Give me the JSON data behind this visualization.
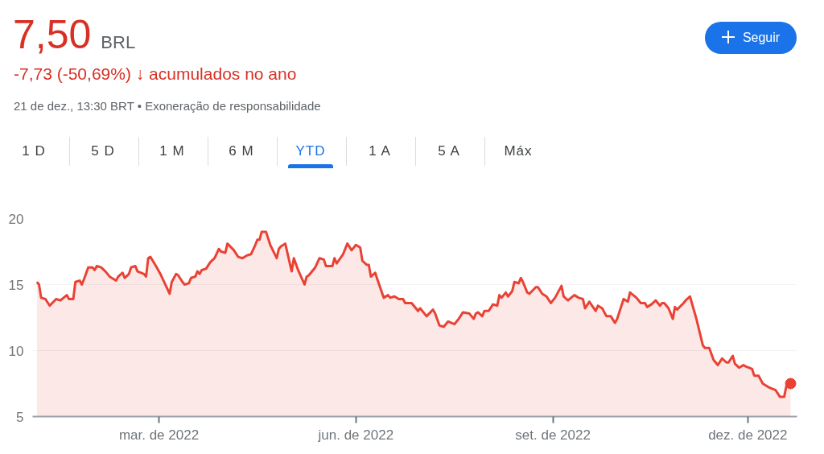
{
  "chart_data": {
    "type": "area",
    "title": "7,50 BRL",
    "subtitle": "-7,73 (-50,69%) ↓ acumulados no ano",
    "annotations": [
      "21 de dez., 13:30 BRT • Exoneração de responsabilidade",
      "Seguir",
      "1 D",
      "5 D",
      "1 M",
      "6 M",
      "YTD",
      "1 A",
      "5 A",
      "Máx"
    ],
    "xlim": [
      "2022-01-01",
      "2022-12-24"
    ],
    "xticks": [
      {
        "value": "2022-03-01",
        "label": "mar. de 2022"
      },
      {
        "value": "2022-06-01",
        "label": "jun. de 2022"
      },
      {
        "value": "2022-09-01",
        "label": "set. de 2022"
      },
      {
        "value": "2022-12-01",
        "label": "dez. de 2022"
      }
    ],
    "ylim": [
      5,
      20
    ],
    "yticks": [
      5,
      10,
      15,
      20
    ],
    "grid": "y",
    "series": [
      {
        "color": "#e94235",
        "line_style": "solid",
        "x": [
          "2022-01-03",
          "2022-01-04",
          "2022-01-05",
          "2022-01-07",
          "2022-01-09",
          "2022-01-12",
          "2022-01-14",
          "2022-01-17",
          "2022-01-18",
          "2022-01-20",
          "2022-01-21",
          "2022-01-23",
          "2022-01-24",
          "2022-01-25",
          "2022-01-27",
          "2022-01-29",
          "2022-01-30",
          "2022-01-31",
          "2022-02-02",
          "2022-02-04",
          "2022-02-06",
          "2022-02-09",
          "2022-02-10",
          "2022-02-12",
          "2022-02-13",
          "2022-02-15",
          "2022-02-16",
          "2022-02-18",
          "2022-02-19",
          "2022-02-22",
          "2022-02-23",
          "2022-02-24",
          "2022-02-25",
          "2022-02-28",
          "2022-03-02",
          "2022-03-06",
          "2022-03-07",
          "2022-03-09",
          "2022-03-10",
          "2022-03-12",
          "2022-03-13",
          "2022-03-15",
          "2022-03-16",
          "2022-03-18",
          "2022-03-19",
          "2022-03-20",
          "2022-03-21",
          "2022-03-23",
          "2022-03-25",
          "2022-03-27",
          "2022-03-29",
          "2022-03-30",
          "2022-04-01",
          "2022-04-02",
          "2022-04-05",
          "2022-04-07",
          "2022-04-09",
          "2022-04-11",
          "2022-04-13",
          "2022-04-15",
          "2022-04-16",
          "2022-04-17",
          "2022-04-18",
          "2022-04-20",
          "2022-04-22",
          "2022-04-25",
          "2022-04-26",
          "2022-04-27",
          "2022-04-29",
          "2022-05-02",
          "2022-05-03",
          "2022-05-05",
          "2022-05-08",
          "2022-05-09",
          "2022-05-10",
          "2022-05-13",
          "2022-05-15",
          "2022-05-17",
          "2022-05-18",
          "2022-05-21",
          "2022-05-22",
          "2022-05-23",
          "2022-05-26",
          "2022-05-28",
          "2022-05-30",
          "2022-06-01",
          "2022-06-03",
          "2022-06-04",
          "2022-06-06",
          "2022-06-07",
          "2022-06-08",
          "2022-06-10",
          "2022-06-11",
          "2022-06-14",
          "2022-06-16",
          "2022-06-17",
          "2022-06-19",
          "2022-06-21",
          "2022-06-23",
          "2022-06-24",
          "2022-06-27",
          "2022-06-28",
          "2022-06-30",
          "2022-07-01",
          "2022-07-04",
          "2022-07-07",
          "2022-07-08",
          "2022-07-10",
          "2022-07-12",
          "2022-07-14",
          "2022-07-17",
          "2022-07-19",
          "2022-07-21",
          "2022-07-24",
          "2022-07-26",
          "2022-07-27",
          "2022-07-28",
          "2022-07-30",
          "2022-07-31",
          "2022-08-02",
          "2022-08-04",
          "2022-08-06",
          "2022-08-07",
          "2022-08-08",
          "2022-08-10",
          "2022-08-11",
          "2022-08-13",
          "2022-08-14",
          "2022-08-16",
          "2022-08-17",
          "2022-08-18",
          "2022-08-20",
          "2022-08-21",
          "2022-08-24",
          "2022-08-25",
          "2022-08-27",
          "2022-08-29",
          "2022-08-31",
          "2022-09-02",
          "2022-09-05",
          "2022-09-06",
          "2022-09-08",
          "2022-09-11",
          "2022-09-13",
          "2022-09-15",
          "2022-09-16",
          "2022-09-18",
          "2022-09-21",
          "2022-09-22",
          "2022-09-24",
          "2022-09-26",
          "2022-09-28",
          "2022-09-30",
          "2022-10-01",
          "2022-10-04",
          "2022-10-06",
          "2022-10-07",
          "2022-10-10",
          "2022-10-12",
          "2022-10-14",
          "2022-10-15",
          "2022-10-17",
          "2022-10-19",
          "2022-10-21",
          "2022-10-22",
          "2022-10-23",
          "2022-10-25",
          "2022-10-27",
          "2022-10-28",
          "2022-10-29",
          "2022-11-01",
          "2022-11-02",
          "2022-11-04",
          "2022-11-07",
          "2022-11-10",
          "2022-11-11",
          "2022-11-13",
          "2022-11-15",
          "2022-11-17",
          "2022-11-19",
          "2022-11-21",
          "2022-11-22",
          "2022-11-24",
          "2022-11-25",
          "2022-11-27",
          "2022-11-29",
          "2022-11-30",
          "2022-12-03",
          "2022-12-04",
          "2022-12-06",
          "2022-12-08",
          "2022-12-11",
          "2022-12-14",
          "2022-12-16",
          "2022-12-18",
          "2022-12-19",
          "2022-12-21"
        ],
        "values": [
          15.2,
          15.0,
          14.0,
          13.9,
          13.4,
          13.9,
          13.8,
          14.2,
          13.9,
          13.9,
          15.2,
          15.3,
          15.0,
          15.4,
          16.3,
          16.3,
          16.1,
          16.4,
          16.3,
          16.0,
          15.6,
          15.3,
          15.6,
          15.9,
          15.5,
          15.8,
          16.3,
          16.4,
          16.0,
          15.8,
          15.6,
          17.0,
          17.1,
          16.3,
          15.7,
          14.3,
          15.2,
          15.8,
          15.7,
          15.2,
          15.0,
          15.1,
          15.5,
          15.6,
          16.0,
          15.8,
          16.1,
          16.2,
          16.7,
          17.0,
          17.7,
          17.5,
          17.4,
          18.1,
          17.6,
          17.1,
          17.0,
          17.2,
          17.3,
          18.0,
          18.4,
          18.4,
          19.0,
          19.0,
          18.0,
          17.0,
          17.7,
          17.9,
          18.1,
          16.0,
          17.0,
          16.1,
          15.0,
          15.6,
          15.7,
          16.3,
          17.0,
          16.9,
          16.4,
          16.4,
          17.0,
          16.6,
          17.3,
          18.1,
          17.6,
          18.0,
          17.8,
          16.8,
          16.5,
          16.5,
          15.6,
          15.9,
          15.4,
          14.0,
          14.2,
          14.0,
          14.1,
          13.9,
          13.9,
          13.6,
          13.6,
          13.4,
          13.0,
          13.2,
          12.6,
          13.1,
          12.8,
          11.9,
          11.8,
          12.2,
          12.0,
          12.4,
          12.9,
          12.8,
          12.4,
          12.8,
          12.9,
          12.6,
          13.0,
          13.0,
          13.5,
          13.4,
          14.2,
          14.0,
          14.4,
          14.1,
          14.5,
          15.2,
          15.1,
          15.5,
          15.2,
          14.4,
          14.3,
          14.8,
          14.8,
          14.3,
          14.1,
          13.6,
          14.0,
          14.9,
          14.1,
          13.8,
          14.2,
          14.0,
          13.9,
          13.2,
          13.7,
          13.0,
          13.4,
          13.2,
          12.6,
          12.6,
          12.1,
          12.4,
          13.9,
          13.7,
          14.4,
          14.0,
          13.6,
          13.6,
          13.3,
          13.5,
          13.8,
          13.4,
          13.6,
          13.6,
          13.2,
          12.4,
          13.3,
          13.1,
          13.6,
          13.8,
          14.1,
          12.4,
          10.4,
          10.2,
          10.2,
          9.3,
          8.9,
          9.4,
          9.1,
          9.1,
          9.6,
          9.0,
          8.7,
          8.9,
          8.8,
          8.6,
          8.1,
          8.1,
          7.5,
          7.2,
          7.0,
          6.5,
          6.5,
          7.3,
          7.5
        ]
      },
      {
        "type": "scatter",
        "color": "#e94235",
        "marker": "circle",
        "x": [
          "2022-12-21"
        ],
        "values": [
          7.5
        ]
      }
    ]
  }
}
